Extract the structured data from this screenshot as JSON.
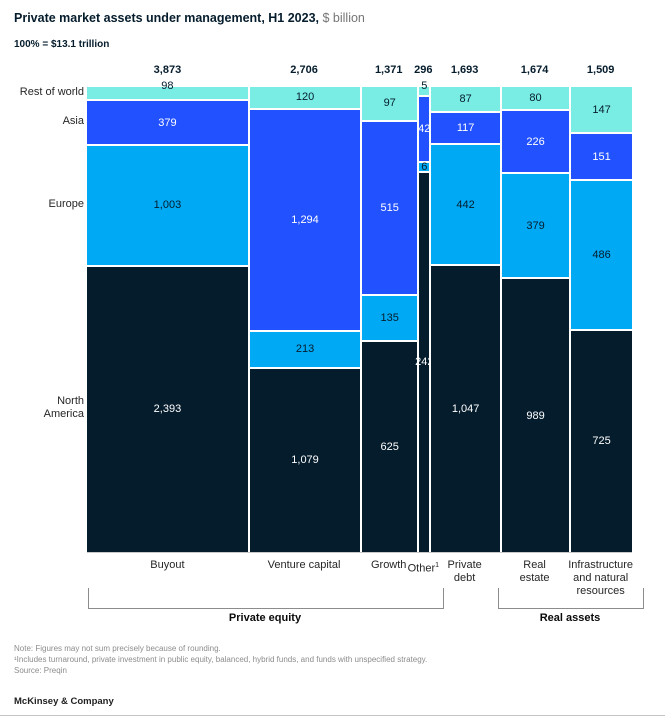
{
  "header": {
    "title": "Private market assets under management, H1 2023,",
    "unit": " $ billion",
    "subtitle": "100% = $13.1 trillion"
  },
  "chart_data": {
    "type": "marimekko",
    "title": "Private market assets under management, H1 2023, $ billion",
    "grand_total_label": "100% = $13.1 trillion",
    "grand_total": 13122,
    "row_labels": [
      "Rest of world",
      "Asia",
      "Europe",
      "North America"
    ],
    "row_label_lines": [
      [
        "Rest of world"
      ],
      [
        "Asia"
      ],
      [
        "Europe"
      ],
      [
        "North",
        "America"
      ]
    ],
    "row_colors": [
      "#79EDE3",
      "#2251FF",
      "#00A9F4",
      "#051C2C"
    ],
    "row_text_colors": [
      "#051C2C",
      "#FFFFFF",
      "#051C2C",
      "#FFFFFF"
    ],
    "columns": [
      {
        "label": "Buyout",
        "label_lines": [
          "Buyout"
        ],
        "total": 3873,
        "total_display": "3,873",
        "values": [
          98,
          379,
          1003,
          2393
        ],
        "value_displays": [
          "98",
          "379",
          "1,003",
          "2,393"
        ]
      },
      {
        "label": "Venture capital",
        "label_lines": [
          "Venture capital"
        ],
        "total": 2706,
        "total_display": "2,706",
        "values": [
          120,
          1294,
          213,
          1079
        ],
        "value_displays": [
          "120",
          "1,294",
          "213",
          "1,079"
        ]
      },
      {
        "label": "Growth",
        "label_lines": [
          "Growth"
        ],
        "total": 1371,
        "total_display": "1,371",
        "values": [
          97,
          515,
          135,
          625
        ],
        "value_displays": [
          "97",
          "515",
          "135",
          "625"
        ]
      },
      {
        "label": "Other",
        "label_lines": [
          "Other"
        ],
        "label_sup": "1",
        "total": 296,
        "total_display": "296",
        "values": [
          5,
          42,
          6,
          242
        ],
        "value_displays": [
          "5",
          "42",
          "6",
          "242"
        ]
      },
      {
        "label": "Private debt",
        "label_lines": [
          "Private",
          "debt"
        ],
        "total": 1693,
        "total_display": "1,693",
        "values": [
          87,
          117,
          442,
          1047
        ],
        "value_displays": [
          "87",
          "117",
          "442",
          "1,047"
        ]
      },
      {
        "label": "Real estate",
        "label_lines": [
          "Real",
          "estate"
        ],
        "total": 1674,
        "total_display": "1,674",
        "values": [
          80,
          226,
          379,
          989
        ],
        "value_displays": [
          "80",
          "226",
          "379",
          "989"
        ]
      },
      {
        "label": "Infrastructure and natural resources",
        "label_lines": [
          "Infrastructure",
          "and natural",
          "resources"
        ],
        "total": 1509,
        "total_display": "1,509",
        "values": [
          147,
          151,
          486,
          725
        ],
        "value_displays": [
          "147",
          "151",
          "486",
          "725"
        ]
      }
    ],
    "groups": [
      {
        "label": "Private equity",
        "columns": [
          "Buyout",
          "Venture capital",
          "Growth",
          "Other"
        ]
      },
      {
        "label": "Real assets",
        "columns": [
          "Real estate",
          "Infrastructure and natural resources"
        ]
      }
    ]
  },
  "footnotes": {
    "note": "Note: Figures may not sum precisely because of rounding.",
    "fn1": "¹Includes turnaround, private investment in public equity, balanced, hybrid funds, and funds with unspecified strategy.",
    "source": "Source: Preqin"
  },
  "footer": {
    "brand": "McKinsey & Company"
  }
}
